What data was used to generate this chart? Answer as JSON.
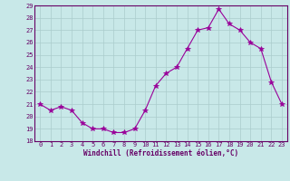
{
  "hours": [
    0,
    1,
    2,
    3,
    4,
    5,
    6,
    7,
    8,
    9,
    10,
    11,
    12,
    13,
    14,
    15,
    16,
    17,
    18,
    19,
    20,
    21,
    22,
    23
  ],
  "values": [
    21.0,
    20.5,
    20.8,
    20.5,
    19.5,
    19.0,
    19.0,
    18.7,
    18.7,
    19.0,
    20.5,
    22.5,
    23.5,
    24.0,
    25.5,
    27.0,
    27.2,
    28.7,
    27.5,
    27.0,
    26.0,
    25.5,
    22.8,
    21.0
  ],
  "line_color": "#990099",
  "marker": "*",
  "bg_color": "#c8e8e8",
  "grid_color": "#aacccc",
  "xlabel": "Windchill (Refroidissement éolien,°C)",
  "ylim": [
    18,
    29
  ],
  "yticks": [
    18,
    19,
    20,
    21,
    22,
    23,
    24,
    25,
    26,
    27,
    28,
    29
  ],
  "xticks": [
    0,
    1,
    2,
    3,
    4,
    5,
    6,
    7,
    8,
    9,
    10,
    11,
    12,
    13,
    14,
    15,
    16,
    17,
    18,
    19,
    20,
    21,
    22,
    23
  ],
  "axis_color": "#660066",
  "tick_color": "#660066",
  "label_color": "#660066"
}
